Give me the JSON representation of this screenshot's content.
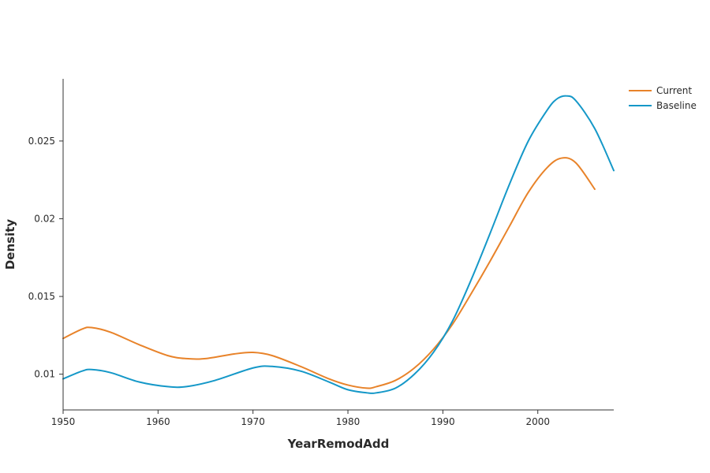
{
  "chart_data": {
    "type": "line",
    "xlabel": "YearRemodAdd",
    "ylabel": "Density",
    "xlim": [
      1950,
      2008
    ],
    "ylim": [
      0.0077,
      0.029
    ],
    "xticks": [
      1950,
      1960,
      1970,
      1980,
      1990,
      2000
    ],
    "yticks": [
      0.01,
      0.015,
      0.02,
      0.025
    ],
    "ytick_labels": [
      "0.01",
      "0.015",
      "0.02",
      "0.025"
    ],
    "grid": false,
    "legend_position": "top-right",
    "series": [
      {
        "name": "Current",
        "color": "#e8832a",
        "x": [
          1950,
          1952,
          1953,
          1955,
          1958,
          1961,
          1963,
          1965,
          1968,
          1970,
          1972,
          1975,
          1978,
          1980,
          1982,
          1983,
          1985,
          1987,
          1989,
          1991,
          1993,
          1995,
          1997,
          1999,
          2001,
          2002.5,
          2004,
          2006
        ],
        "y": [
          0.0123,
          0.0129,
          0.013,
          0.0127,
          0.0119,
          0.0112,
          0.011,
          0.011,
          0.0113,
          0.0114,
          0.0112,
          0.0105,
          0.0097,
          0.0093,
          0.0091,
          0.0092,
          0.0096,
          0.0104,
          0.0116,
          0.0132,
          0.0152,
          0.0173,
          0.0195,
          0.0217,
          0.0233,
          0.0239,
          0.0236,
          0.0219
        ]
      },
      {
        "name": "Baseline",
        "color": "#1598c8",
        "x": [
          1950,
          1952,
          1953,
          1955,
          1958,
          1961,
          1963,
          1966,
          1970,
          1972,
          1975,
          1978,
          1980,
          1982,
          1983,
          1985,
          1987,
          1989,
          1991,
          1993,
          1995,
          1997,
          1999,
          2001,
          2002,
          2003,
          2004,
          2006,
          2008
        ],
        "y": [
          0.0097,
          0.0102,
          0.0103,
          0.0101,
          0.0095,
          0.0092,
          0.0092,
          0.0096,
          0.0104,
          0.0105,
          0.0102,
          0.0095,
          0.009,
          0.0088,
          0.0088,
          0.0091,
          0.01,
          0.0114,
          0.0134,
          0.0161,
          0.0191,
          0.0222,
          0.025,
          0.027,
          0.0277,
          0.0279,
          0.0276,
          0.0258,
          0.0231
        ]
      }
    ]
  }
}
